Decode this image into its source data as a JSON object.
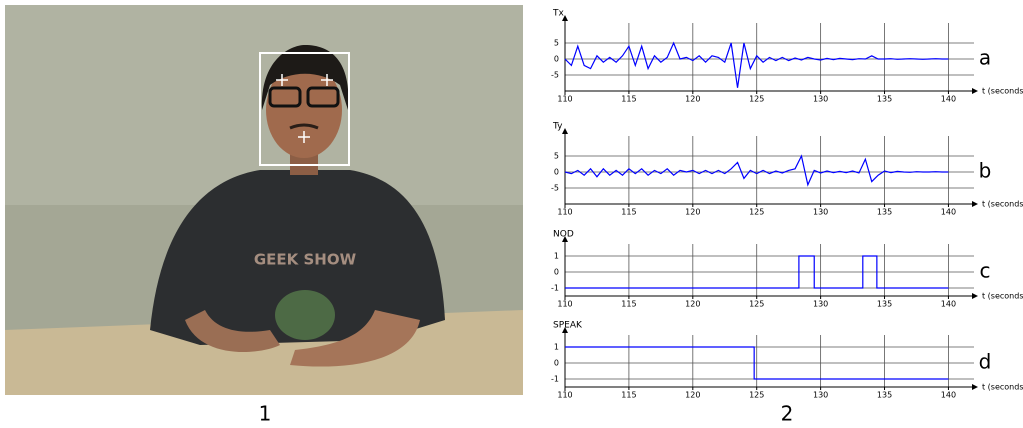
{
  "panel_labels": [
    "1",
    "2"
  ],
  "chart_data": [
    {
      "type": "line",
      "title": "Tx",
      "annotation": "a",
      "xlabel": "t (seconds)",
      "color": "#0000ff",
      "grid": true,
      "xlim": [
        110,
        142
      ],
      "xticks": [
        110,
        115,
        120,
        125,
        130,
        135,
        140
      ],
      "ylim": [
        -10,
        10
      ],
      "yticks": [
        5,
        0,
        -5
      ],
      "x": [
        110,
        110.5,
        111,
        111.5,
        112,
        112.5,
        113,
        113.5,
        114,
        114.5,
        115,
        115.5,
        116,
        116.5,
        117,
        117.5,
        118,
        118.5,
        119,
        119.5,
        120,
        120.5,
        121,
        121.5,
        122,
        122.5,
        123,
        123.5,
        124,
        124.5,
        125,
        125.5,
        126,
        126.5,
        127,
        127.5,
        128,
        128.5,
        129,
        129.5,
        130,
        130.5,
        131,
        131.5,
        132,
        132.5,
        133,
        133.5,
        134,
        134.5,
        135,
        135.5,
        136,
        136.5,
        137,
        137.5,
        138,
        138.5,
        139,
        139.5,
        140
      ],
      "values": [
        0,
        -2,
        4,
        -2,
        -3,
        1,
        -1,
        0.5,
        -1,
        1,
        4,
        -2,
        4,
        -3,
        1,
        -1,
        0.5,
        5,
        0,
        0.5,
        -0.5,
        1,
        -1,
        1,
        0.5,
        -1,
        5,
        -9,
        5,
        -3,
        1,
        -1,
        0.5,
        -0.5,
        0.5,
        -0.5,
        0.3,
        -0.3,
        0.5,
        0,
        -0.3,
        0.2,
        -0.2,
        0.2,
        0,
        -0.2,
        0.1,
        0,
        1,
        0,
        0,
        0.1,
        -0.1,
        0,
        0.1,
        0,
        -0.1,
        0,
        0.1,
        0,
        0
      ]
    },
    {
      "type": "line",
      "title": "Ty",
      "annotation": "b",
      "xlabel": "t (seconds)",
      "color": "#0000ff",
      "grid": true,
      "xlim": [
        110,
        142
      ],
      "xticks": [
        110,
        115,
        120,
        125,
        130,
        135,
        140
      ],
      "ylim": [
        -10,
        10
      ],
      "yticks": [
        5,
        0,
        -5
      ],
      "x": [
        110,
        110.5,
        111,
        111.5,
        112,
        112.5,
        113,
        113.5,
        114,
        114.5,
        115,
        115.5,
        116,
        116.5,
        117,
        117.5,
        118,
        118.5,
        119,
        119.5,
        120,
        120.5,
        121,
        121.5,
        122,
        122.5,
        123,
        123.5,
        124,
        124.5,
        125,
        125.5,
        126,
        126.5,
        127,
        127.5,
        128,
        128.5,
        129,
        129.5,
        130,
        130.5,
        131,
        131.5,
        132,
        132.5,
        133,
        133.5,
        134,
        134.5,
        135,
        135.5,
        136,
        136.5,
        137,
        137.5,
        138,
        138.5,
        139,
        139.5,
        140
      ],
      "values": [
        0,
        -0.5,
        0.5,
        -1,
        1,
        -1.5,
        1,
        -1,
        0.5,
        -1,
        1,
        -0.5,
        1,
        -1,
        0.5,
        -0.5,
        1,
        -1,
        0.5,
        0,
        0.5,
        -0.5,
        0.5,
        -0.5,
        0.5,
        -0.5,
        1,
        3,
        -2,
        0.5,
        -0.5,
        0.5,
        -0.5,
        0.3,
        -0.3,
        0.5,
        1,
        5,
        -4,
        0.5,
        -0.3,
        0.3,
        -0.2,
        0.2,
        -0.2,
        0.3,
        -0.3,
        4,
        -3,
        -1,
        0.3,
        -0.2,
        0.2,
        0,
        -0.1,
        0.1,
        0,
        0,
        0.1,
        0,
        0
      ]
    },
    {
      "type": "line",
      "title": "NOD",
      "annotation": "c",
      "xlabel": "t (seconds)",
      "color": "#0000ff",
      "grid": true,
      "xlim": [
        110,
        142
      ],
      "xticks": [
        110,
        115,
        120,
        125,
        130,
        135,
        140
      ],
      "ylim": [
        -1.5,
        1.5
      ],
      "yticks": [
        1,
        0,
        -1
      ],
      "x": [
        110,
        128.3,
        128.3,
        129.5,
        129.5,
        133.3,
        133.3,
        134.4,
        134.4,
        140
      ],
      "values": [
        -1,
        -1,
        1,
        1,
        -1,
        -1,
        1,
        1,
        -1,
        -1
      ]
    },
    {
      "type": "line",
      "title": "SPEAK",
      "annotation": "d",
      "xlabel": "t (seconds)",
      "color": "#0000ff",
      "grid": true,
      "xlim": [
        110,
        142
      ],
      "xticks": [
        110,
        115,
        120,
        125,
        130,
        135,
        140
      ],
      "ylim": [
        -1.5,
        1.5
      ],
      "yticks": [
        1,
        0,
        -1
      ],
      "x": [
        110,
        124.8,
        124.8,
        140
      ],
      "values": [
        1,
        1,
        -1,
        -1
      ]
    }
  ]
}
